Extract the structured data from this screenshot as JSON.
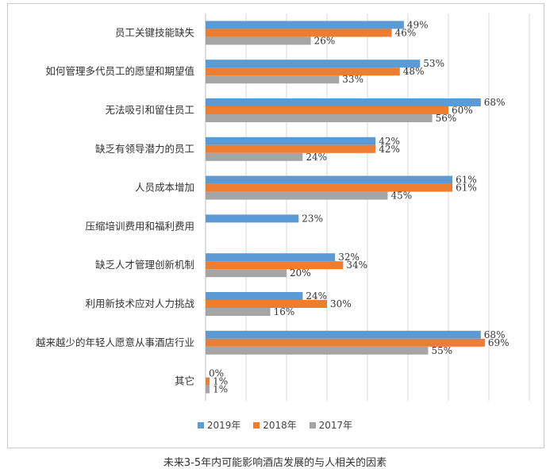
{
  "chart_data": {
    "type": "bar",
    "orientation": "horizontal",
    "title": "",
    "categories": [
      "员工关键技能缺失",
      "如何管理多代员工的愿望和期望值",
      "无法吸引和留住员工",
      "缺乏有领导潜力的员工",
      "人员成本增加",
      "压缩培训费用和福利费用",
      "缺乏人才管理创新机制",
      "利用新技术应对人力挑战",
      "越来越少的年轻人愿意从事酒店行业",
      "其它"
    ],
    "series": [
      {
        "name": "2019年",
        "color": "#5b9bd5",
        "values": [
          49,
          53,
          68,
          42,
          61,
          23,
          32,
          24,
          68,
          0
        ],
        "labels": [
          "49%",
          "53%",
          "68%",
          "42%",
          "61%",
          "23%",
          "32%",
          "24%",
          "68%",
          "0%"
        ]
      },
      {
        "name": "2018年",
        "color": "#ed7d31",
        "values": [
          46,
          48,
          60,
          42,
          61,
          null,
          34,
          30,
          69,
          1
        ],
        "labels": [
          "46%",
          "48%",
          "60%",
          "42%",
          "61%",
          "",
          "34%",
          "30%",
          "69%",
          "1%"
        ]
      },
      {
        "name": "2017年",
        "color": "#a5a5a5",
        "values": [
          26,
          33,
          56,
          24,
          45,
          null,
          20,
          16,
          55,
          1
        ],
        "labels": [
          "26%",
          "33%",
          "56%",
          "24%",
          "45%",
          "",
          "20%",
          "16%",
          "55%",
          "1%"
        ]
      }
    ],
    "xlim": [
      0,
      80
    ],
    "grid": true,
    "legend_position": "bottom"
  },
  "caption": "未来3-5年内可能影响酒店发展的与人相关的因素"
}
